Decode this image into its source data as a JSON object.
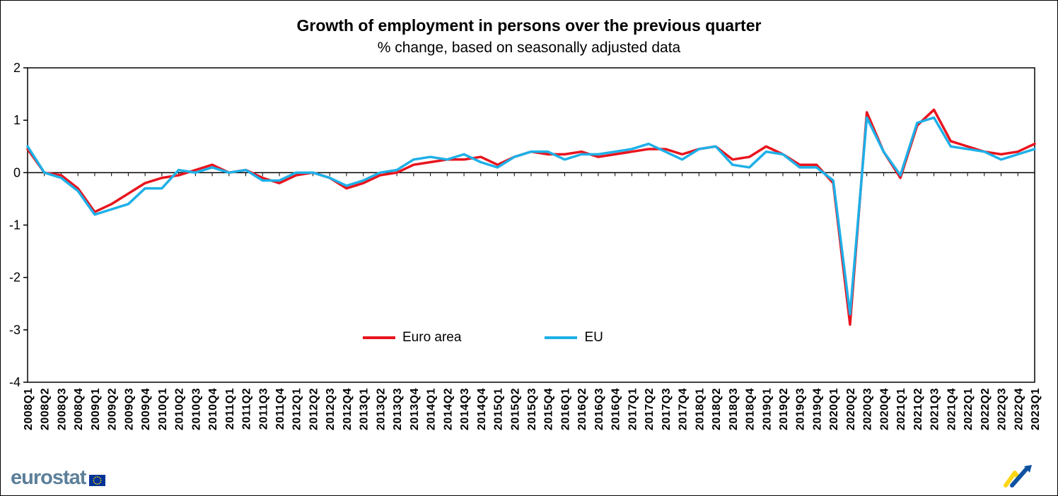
{
  "chart_data": {
    "type": "line",
    "title": "Growth of employment in persons over the previous quarter",
    "subtitle": "% change, based on seasonally adjusted data",
    "xlabel": "",
    "ylabel": "",
    "ylim": [
      -4,
      2
    ],
    "yticks": [
      2,
      1,
      0,
      -1,
      -2,
      -3,
      -4
    ],
    "grid": false,
    "legend_position": "inside-bottom-center",
    "categories": [
      "2008Q1",
      "2008Q2",
      "2008Q3",
      "2008Q4",
      "2009Q1",
      "2009Q2",
      "2009Q3",
      "2009Q4",
      "2010Q1",
      "2010Q2",
      "2010Q3",
      "2010Q4",
      "2011Q1",
      "2011Q2",
      "2011Q3",
      "2011Q4",
      "2012Q1",
      "2012Q2",
      "2012Q3",
      "2012Q4",
      "2013Q1",
      "2013Q2",
      "2013Q3",
      "2013Q4",
      "2014Q1",
      "2014Q2",
      "2014Q3",
      "2014Q4",
      "2015Q1",
      "2015Q2",
      "2015Q3",
      "2015Q4",
      "2016Q1",
      "2016Q2",
      "2016Q3",
      "2016Q4",
      "2017Q1",
      "2017Q2",
      "2017Q3",
      "2017Q4",
      "2018Q1",
      "2018Q2",
      "2018Q3",
      "2018Q4",
      "2019Q1",
      "2019Q2",
      "2019Q3",
      "2019Q4",
      "2020Q1",
      "2020Q2",
      "2020Q3",
      "2020Q4",
      "2021Q1",
      "2021Q2",
      "2021Q3",
      "2021Q4",
      "2022Q1",
      "2022Q2",
      "2022Q3",
      "2022Q4",
      "2023Q1"
    ],
    "series": [
      {
        "name": "Euro area",
        "color": "#e8141e",
        "values": [
          0.45,
          0.0,
          -0.05,
          -0.3,
          -0.75,
          -0.6,
          -0.4,
          -0.2,
          -0.1,
          -0.05,
          0.05,
          0.15,
          0.0,
          0.05,
          -0.1,
          -0.2,
          -0.05,
          0.0,
          -0.1,
          -0.3,
          -0.2,
          -0.05,
          0.0,
          0.15,
          0.2,
          0.25,
          0.25,
          0.3,
          0.15,
          0.3,
          0.4,
          0.35,
          0.35,
          0.4,
          0.3,
          0.35,
          0.4,
          0.45,
          0.45,
          0.35,
          0.45,
          0.5,
          0.25,
          0.3,
          0.5,
          0.35,
          0.15,
          0.15,
          -0.2,
          -2.9,
          1.15,
          0.4,
          -0.1,
          0.9,
          1.2,
          0.6,
          0.5,
          0.4,
          0.35,
          0.4,
          0.55
        ]
      },
      {
        "name": "EU",
        "color": "#1db0e8",
        "values": [
          0.5,
          0.0,
          -0.1,
          -0.35,
          -0.8,
          -0.7,
          -0.6,
          -0.3,
          -0.3,
          0.05,
          0.0,
          0.1,
          0.0,
          0.05,
          -0.15,
          -0.15,
          0.0,
          0.0,
          -0.1,
          -0.25,
          -0.15,
          0.0,
          0.05,
          0.25,
          0.3,
          0.25,
          0.35,
          0.2,
          0.1,
          0.3,
          0.4,
          0.4,
          0.25,
          0.35,
          0.35,
          0.4,
          0.45,
          0.55,
          0.4,
          0.25,
          0.45,
          0.5,
          0.15,
          0.1,
          0.4,
          0.35,
          0.1,
          0.1,
          -0.15,
          -2.7,
          1.05,
          0.4,
          -0.05,
          0.95,
          1.05,
          0.5,
          0.45,
          0.4,
          0.25,
          0.35,
          0.45
        ]
      }
    ]
  },
  "footer": {
    "logo_text": "eurostat"
  },
  "colors": {
    "axis": "#000000",
    "eurostat_logo_text": "#5c7f99",
    "eu_flag_blue": "#003399",
    "eu_flag_stars": "#ffcc00"
  }
}
